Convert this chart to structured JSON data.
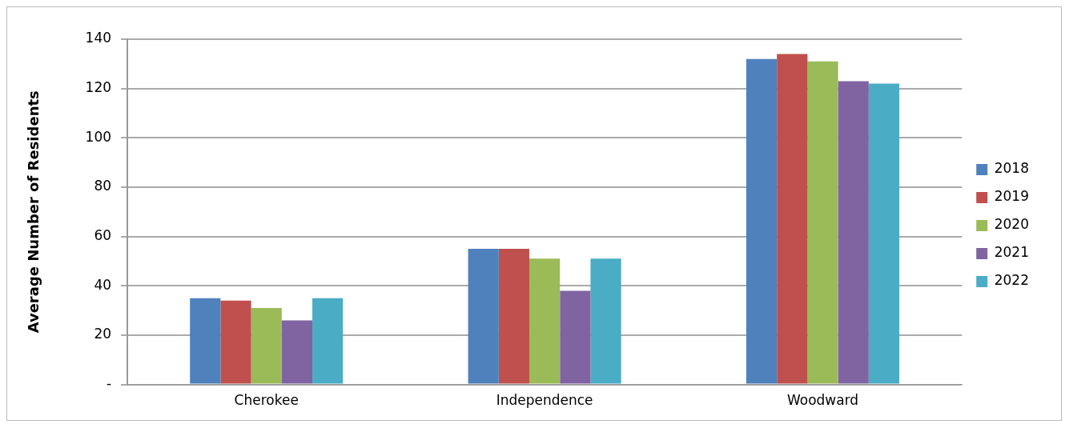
{
  "chart_data": {
    "type": "bar",
    "ylabel": "Average Number of Residents",
    "categories": [
      "Cherokee",
      "Independence",
      "Woodward"
    ],
    "series": [
      {
        "name": "2018",
        "color": "#4f81bd",
        "values": [
          35,
          55,
          132
        ]
      },
      {
        "name": "2019",
        "color": "#c0504d",
        "values": [
          34,
          55,
          134
        ]
      },
      {
        "name": "2020",
        "color": "#9bbb59",
        "values": [
          31,
          51,
          131
        ]
      },
      {
        "name": "2021",
        "color": "#8064a2",
        "values": [
          26,
          38,
          123
        ]
      },
      {
        "name": "2022",
        "color": "#4bacc6",
        "values": [
          35,
          51,
          122
        ]
      }
    ],
    "ylim": [
      0,
      140
    ],
    "yticks": [
      {
        "value": 0,
        "label": "-"
      },
      20,
      40,
      60,
      80,
      100,
      120,
      140
    ],
    "grid": "y",
    "legend": "right"
  }
}
